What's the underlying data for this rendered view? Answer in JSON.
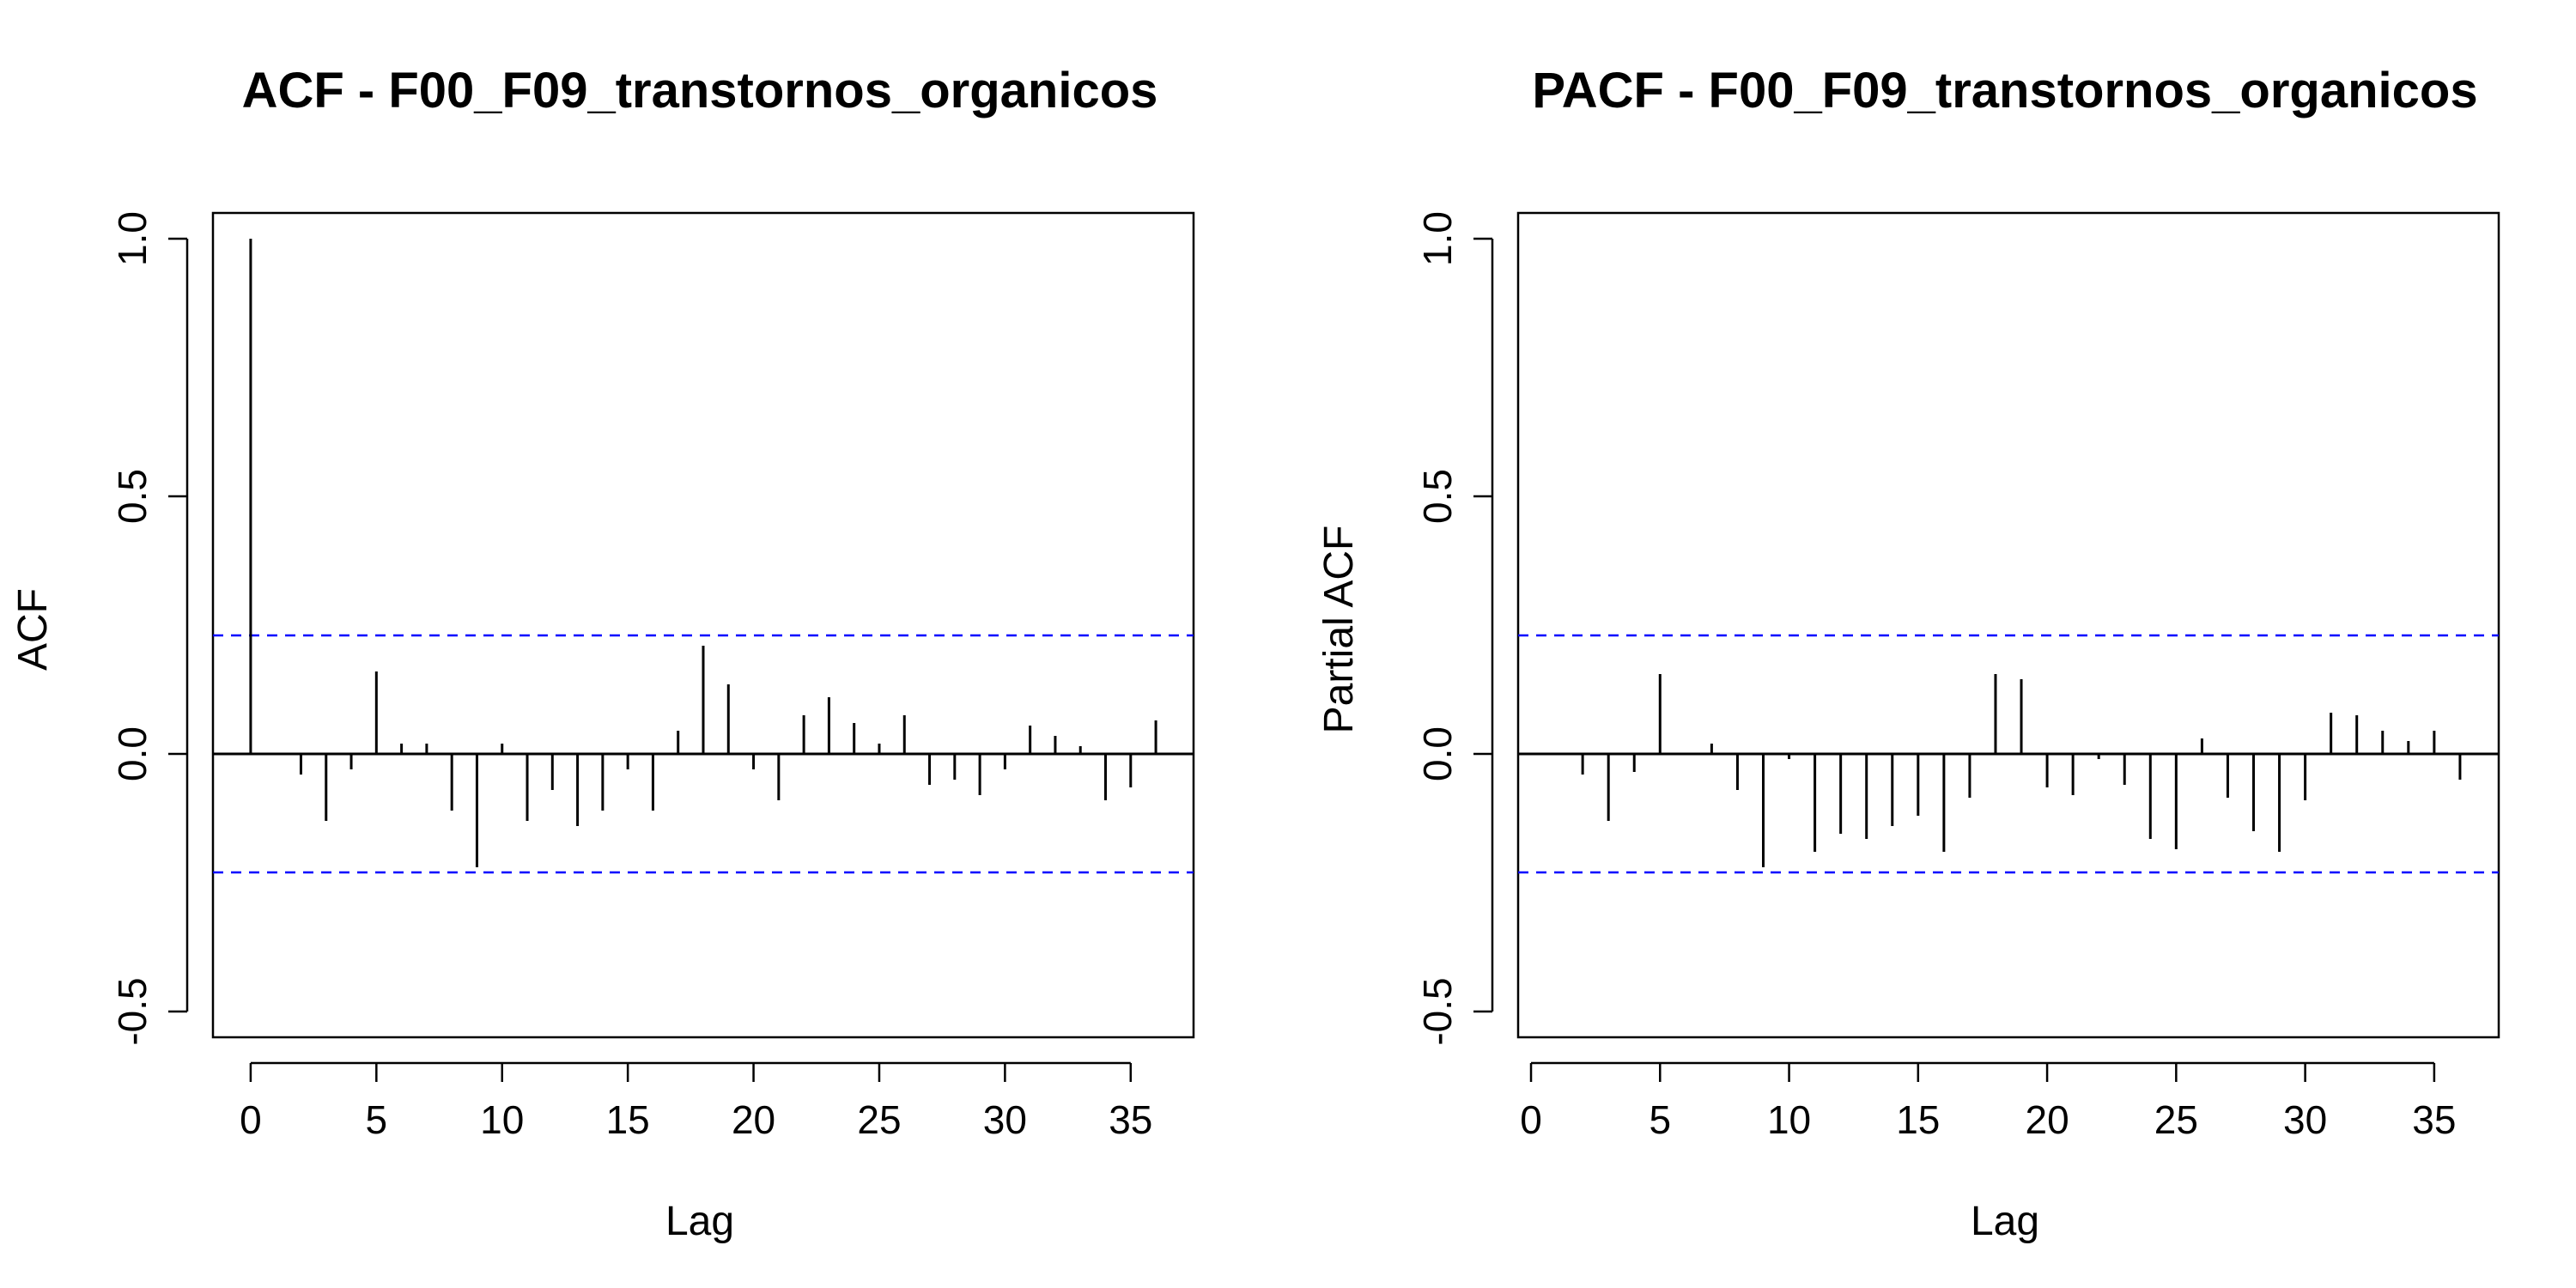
{
  "chart_data": [
    {
      "type": "bar",
      "title": "ACF - F00_F09_transtornos_organicos",
      "xlabel": "Lag",
      "ylabel": "ACF",
      "xlim": [
        -1.5,
        37.5
      ],
      "ylim": [
        -0.55,
        1.05
      ],
      "xticks": [
        0,
        5,
        10,
        15,
        20,
        25,
        30,
        35
      ],
      "yticks": [
        -0.5,
        0.0,
        0.5,
        1.0
      ],
      "ytick_labels": [
        "-0.5",
        "0.0",
        "0.5",
        "1.0"
      ],
      "ci": [
        0.23,
        -0.23
      ],
      "lags": [
        0,
        1,
        2,
        3,
        4,
        5,
        6,
        7,
        8,
        9,
        10,
        11,
        12,
        13,
        14,
        15,
        16,
        17,
        18,
        19,
        20,
        21,
        22,
        23,
        24,
        25,
        26,
        27,
        28,
        29,
        30,
        31,
        32,
        33,
        34,
        35,
        36
      ],
      "values": [
        1.0,
        0.0,
        -0.04,
        -0.13,
        -0.03,
        0.16,
        0.02,
        0.02,
        -0.11,
        -0.22,
        0.02,
        -0.13,
        -0.07,
        -0.14,
        -0.11,
        -0.03,
        -0.11,
        0.045,
        0.21,
        0.135,
        -0.03,
        -0.09,
        0.075,
        0.11,
        0.06,
        0.02,
        0.075,
        -0.06,
        -0.05,
        -0.08,
        -0.03,
        0.055,
        0.035,
        0.015,
        -0.09,
        -0.065,
        0.065
      ],
      "colors": {
        "bars": "#000000",
        "ci": "#0000ff"
      }
    },
    {
      "type": "bar",
      "title": "PACF - F00_F09_transtornos_organicos",
      "xlabel": "Lag",
      "ylabel": "Partial ACF",
      "xlim": [
        -0.5,
        37.5
      ],
      "ylim": [
        -0.55,
        1.05
      ],
      "xticks": [
        0,
        5,
        10,
        15,
        20,
        25,
        30,
        35
      ],
      "yticks": [
        -0.5,
        0.0,
        0.5,
        1.0
      ],
      "ytick_labels": [
        "-0.5",
        "0.0",
        "0.5",
        "1.0"
      ],
      "ci": [
        0.23,
        -0.23
      ],
      "lags": [
        1,
        2,
        3,
        4,
        5,
        6,
        7,
        8,
        9,
        10,
        11,
        12,
        13,
        14,
        15,
        16,
        17,
        18,
        19,
        20,
        21,
        22,
        23,
        24,
        25,
        26,
        27,
        28,
        29,
        30,
        31,
        32,
        33,
        34,
        35,
        36
      ],
      "values": [
        0.0,
        -0.04,
        -0.13,
        -0.035,
        0.155,
        0.0,
        0.02,
        -0.07,
        -0.22,
        -0.01,
        -0.19,
        -0.155,
        -0.165,
        -0.14,
        -0.12,
        -0.19,
        -0.085,
        0.155,
        0.145,
        -0.065,
        -0.08,
        -0.01,
        -0.06,
        -0.165,
        -0.185,
        0.03,
        -0.085,
        -0.15,
        -0.19,
        -0.09,
        0.08,
        0.075,
        0.045,
        0.025,
        0.045,
        -0.05
      ],
      "colors": {
        "bars": "#000000",
        "ci": "#0000ff"
      }
    }
  ]
}
